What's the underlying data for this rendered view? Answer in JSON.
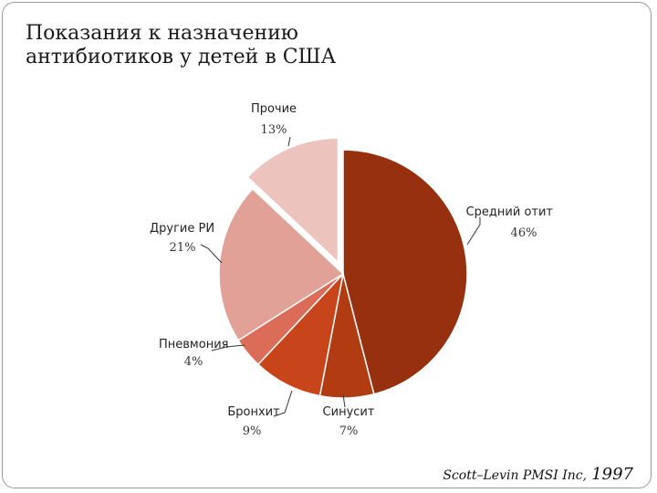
{
  "title_lines": [
    "Показания к назначению",
    "антибиотиков у детей в США"
  ],
  "source": {
    "text": "Scott–Levin PMSI Inc,",
    "year": "1997"
  },
  "chart_data": {
    "type": "pie",
    "title": "Показания к назначению антибиотиков у детей в США",
    "slices": [
      {
        "label": "Средний отит",
        "value": 46,
        "pct_label": "46%",
        "color": "#96300e",
        "exploded": false
      },
      {
        "label": "Синусит",
        "value": 7,
        "pct_label": "7%",
        "color": "#b23c12",
        "exploded": false
      },
      {
        "label": "Бронхит",
        "value": 9,
        "pct_label": "9%",
        "color": "#c8441a",
        "exploded": false
      },
      {
        "label": "Пневмония",
        "value": 4,
        "pct_label": "4%",
        "color": "#da6c58",
        "exploded": false
      },
      {
        "label": "Другие РИ",
        "value": 21,
        "pct_label": "21%",
        "color": "#e1a197",
        "exploded": false
      },
      {
        "label": "Прочие",
        "value": 13,
        "pct_label": "13%",
        "color": "#ecc3bd",
        "exploded": true
      }
    ],
    "start": "top",
    "direction": "clockwise"
  }
}
